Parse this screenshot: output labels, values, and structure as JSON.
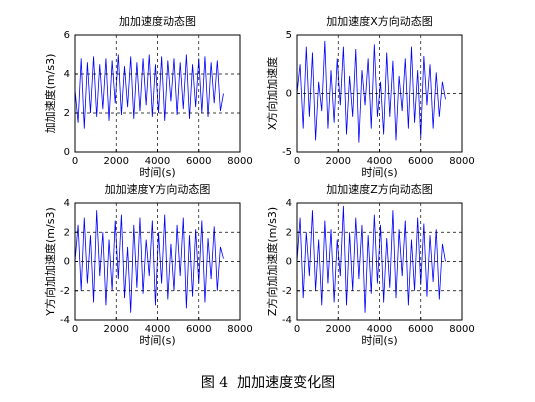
{
  "chart_data": [
    {
      "type": "line",
      "title": "加加速度动态图",
      "x_label": "时间(s)",
      "y_label": "加加速度(m/s3)",
      "grid": true,
      "xlim": [
        0,
        8000
      ],
      "xticks": [
        0,
        2000,
        4000,
        6000,
        8000
      ],
      "ylim": [
        0,
        6
      ],
      "yticks": [
        0,
        2,
        4,
        6
      ],
      "x": [
        0,
        150,
        300,
        450,
        600,
        750,
        900,
        1050,
        1200,
        1350,
        1500,
        1650,
        1800,
        1950,
        2100,
        2250,
        2400,
        2550,
        2700,
        2850,
        3000,
        3150,
        3300,
        3450,
        3600,
        3750,
        3900,
        4050,
        4200,
        4350,
        4500,
        4650,
        4800,
        4950,
        5100,
        5250,
        5400,
        5550,
        5700,
        5850,
        6000,
        6150,
        6300,
        6450,
        6600,
        6750,
        6900,
        7050,
        7200
      ],
      "series": [
        {
          "color": "#0000ff",
          "values": [
            3.2,
            1.5,
            4.8,
            1.2,
            4.6,
            2.0,
            4.9,
            1.8,
            4.5,
            2.2,
            4.8,
            1.6,
            4.7,
            2.5,
            5.0,
            1.9,
            4.4,
            2.3,
            4.9,
            1.7,
            4.6,
            2.1,
            4.8,
            2.4,
            5.0,
            1.8,
            4.5,
            2.0,
            4.9,
            1.6,
            4.7,
            2.6,
            4.8,
            1.9,
            4.6,
            2.2,
            5.0,
            1.7,
            4.5,
            2.3,
            4.8,
            2.0,
            4.9,
            1.8,
            4.6,
            2.5,
            4.7,
            2.1,
            3.0
          ]
        }
      ]
    },
    {
      "type": "line",
      "title": "加加速度X方向动态图",
      "x_label": "时间(s)",
      "y_label": "X方向加加速度",
      "grid": true,
      "xlim": [
        0,
        8000
      ],
      "xticks": [
        0,
        2000,
        4000,
        6000,
        8000
      ],
      "ylim": [
        -5,
        5
      ],
      "yticks": [
        -5,
        0,
        5
      ],
      "x": [
        0,
        150,
        300,
        450,
        600,
        750,
        900,
        1050,
        1200,
        1350,
        1500,
        1650,
        1800,
        1950,
        2100,
        2250,
        2400,
        2550,
        2700,
        2850,
        3000,
        3150,
        3300,
        3450,
        3600,
        3750,
        3900,
        4050,
        4200,
        4350,
        4500,
        4650,
        4800,
        4950,
        5100,
        5250,
        5400,
        5550,
        5700,
        5850,
        6000,
        6150,
        6300,
        6450,
        6600,
        6750,
        6900,
        7050,
        7200
      ],
      "series": [
        {
          "color": "#0000ff",
          "values": [
            0,
            2.5,
            -3,
            4,
            -2,
            3.5,
            -4,
            1,
            -1.5,
            4.5,
            -3,
            2,
            -2.5,
            3,
            -1,
            4,
            -3.5,
            1.5,
            -2,
            3.8,
            -4.2,
            2,
            -1,
            3,
            -3,
            4.2,
            -2,
            1,
            -3.5,
            3.5,
            -2,
            2.8,
            -4,
            1.5,
            -1.5,
            3,
            -3,
            4,
            -2.5,
            2,
            -3.8,
            3.2,
            -1,
            2.5,
            -3,
            1.8,
            -2,
            1,
            -0.5
          ]
        }
      ]
    },
    {
      "type": "line",
      "title": "加加速度Y方向动态图",
      "x_label": "时间(s)",
      "y_label": "Y方向加加速度(m/s3)",
      "grid": true,
      "xlim": [
        0,
        8000
      ],
      "xticks": [
        0,
        2000,
        4000,
        6000,
        8000
      ],
      "ylim": [
        -4,
        4
      ],
      "yticks": [
        -4,
        -2,
        0,
        2,
        4
      ],
      "x": [
        0,
        150,
        300,
        450,
        600,
        750,
        900,
        1050,
        1200,
        1350,
        1500,
        1650,
        1800,
        1950,
        2100,
        2250,
        2400,
        2550,
        2700,
        2850,
        3000,
        3150,
        3300,
        3450,
        3600,
        3750,
        3900,
        4050,
        4200,
        4350,
        4500,
        4650,
        4800,
        4950,
        5100,
        5250,
        5400,
        5550,
        5700,
        5850,
        6000,
        6150,
        6300,
        6450,
        6600,
        6750,
        6900,
        7050,
        7200
      ],
      "series": [
        {
          "color": "#0000ff",
          "values": [
            0,
            2.5,
            -2,
            3,
            -1.5,
            1.8,
            -2.8,
            3.5,
            -1,
            2,
            -3,
            1.5,
            -2,
            2.8,
            -1.2,
            3.2,
            -2.5,
            1,
            -3.5,
            2.5,
            -1.8,
            3,
            -2.2,
            1.5,
            -1,
            2.8,
            -3,
            2,
            -1.5,
            3.2,
            -2.6,
            1.2,
            -2,
            2.5,
            -1,
            3,
            -3.2,
            1.8,
            -2.4,
            2.2,
            -1.5,
            2.8,
            -2.8,
            1.6,
            -1.2,
            2.4,
            -2,
            1,
            0.2
          ]
        }
      ]
    },
    {
      "type": "line",
      "title": "加加速度Z方向动态图",
      "x_label": "时间(s)",
      "y_label": "Z方向加加速度(m/s3)",
      "grid": true,
      "xlim": [
        0,
        8000
      ],
      "xticks": [
        0,
        2000,
        4000,
        6000,
        8000
      ],
      "ylim": [
        -4,
        4
      ],
      "yticks": [
        -4,
        -2,
        0,
        2,
        4
      ],
      "x": [
        0,
        150,
        300,
        450,
        600,
        750,
        900,
        1050,
        1200,
        1350,
        1500,
        1650,
        1800,
        1950,
        2100,
        2250,
        2400,
        2550,
        2700,
        2850,
        3000,
        3150,
        3300,
        3450,
        3600,
        3750,
        3900,
        4050,
        4200,
        4350,
        4500,
        4650,
        4800,
        4950,
        5100,
        5250,
        5400,
        5550,
        5700,
        5850,
        6000,
        6150,
        6300,
        6450,
        6600,
        6750,
        6900,
        7050,
        7200
      ],
      "series": [
        {
          "color": "#0000ff",
          "values": [
            0,
            3,
            -2.5,
            2,
            -1,
            3.5,
            -2,
            1.5,
            -3,
            2.8,
            -1.5,
            2.2,
            -2.8,
            1.5,
            -1,
            3.8,
            -3,
            2,
            -2,
            3,
            -1.2,
            2.5,
            -3.5,
            1.8,
            -2.2,
            3.2,
            -1.5,
            2.5,
            -2.8,
            1.6,
            -1.8,
            3.5,
            -2.5,
            2.2,
            -1,
            2.8,
            -3,
            1.5,
            -2,
            3,
            -1.6,
            2.6,
            -2.4,
            1.8,
            -1.4,
            2.2,
            -2.6,
            1.2,
            0
          ]
        }
      ]
    }
  ],
  "caption": "图 4  加加速度变化图"
}
